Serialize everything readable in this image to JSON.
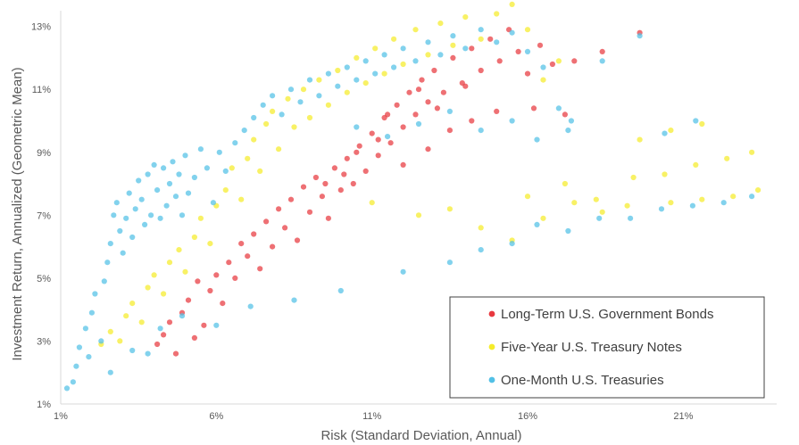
{
  "chart_data": {
    "type": "scatter",
    "title": "",
    "xlabel": "Risk (Standard Deviation, Annual)",
    "ylabel": "Investment Return, Annualized (Geometric Mean)",
    "xlim": [
      1,
      24
    ],
    "ylim": [
      1,
      13.5
    ],
    "x_ticks": [
      "1%",
      "6%",
      "11%",
      "16%",
      "21%"
    ],
    "y_ticks": [
      "1%",
      "3%",
      "5%",
      "7%",
      "9%",
      "11%",
      "13%"
    ],
    "legend_position": "bottom-right",
    "grid": false,
    "series": [
      {
        "name": "Long-Term U.S. Government Bonds",
        "color": "#e8393f",
        "points": [
          [
            4.1,
            2.9
          ],
          [
            4.3,
            3.2
          ],
          [
            4.5,
            3.6
          ],
          [
            4.7,
            2.6
          ],
          [
            4.9,
            3.9
          ],
          [
            5.1,
            4.3
          ],
          [
            5.3,
            3.1
          ],
          [
            5.4,
            4.9
          ],
          [
            5.6,
            3.5
          ],
          [
            5.8,
            4.6
          ],
          [
            6.0,
            5.1
          ],
          [
            6.2,
            4.2
          ],
          [
            6.4,
            5.5
          ],
          [
            6.6,
            5.0
          ],
          [
            6.8,
            6.1
          ],
          [
            7.0,
            5.7
          ],
          [
            7.2,
            6.4
          ],
          [
            7.4,
            5.3
          ],
          [
            7.6,
            6.8
          ],
          [
            7.8,
            6.0
          ],
          [
            8.0,
            7.2
          ],
          [
            8.2,
            6.6
          ],
          [
            8.4,
            7.5
          ],
          [
            8.6,
            6.2
          ],
          [
            8.8,
            7.9
          ],
          [
            9.0,
            7.1
          ],
          [
            9.2,
            8.2
          ],
          [
            9.4,
            7.6
          ],
          [
            9.6,
            6.9
          ],
          [
            9.8,
            8.5
          ],
          [
            10.0,
            7.8
          ],
          [
            10.2,
            8.8
          ],
          [
            10.4,
            8.0
          ],
          [
            10.6,
            9.2
          ],
          [
            10.8,
            8.4
          ],
          [
            11.0,
            9.6
          ],
          [
            11.2,
            8.9
          ],
          [
            11.4,
            10.1
          ],
          [
            11.6,
            9.3
          ],
          [
            11.8,
            10.5
          ],
          [
            12.0,
            9.8
          ],
          [
            12.2,
            10.9
          ],
          [
            12.4,
            10.2
          ],
          [
            12.6,
            11.3
          ],
          [
            12.8,
            10.6
          ],
          [
            13.0,
            11.6
          ],
          [
            13.3,
            10.9
          ],
          [
            13.6,
            12.0
          ],
          [
            13.9,
            11.2
          ],
          [
            14.2,
            12.3
          ],
          [
            14.5,
            11.6
          ],
          [
            14.8,
            12.6
          ],
          [
            15.1,
            11.9
          ],
          [
            15.4,
            12.9
          ],
          [
            15.7,
            12.2
          ],
          [
            16.0,
            11.5
          ],
          [
            16.4,
            12.4
          ],
          [
            16.8,
            11.8
          ],
          [
            17.5,
            11.9
          ],
          [
            18.4,
            12.2
          ],
          [
            19.6,
            12.8
          ],
          [
            10.5,
            9.0
          ],
          [
            11.2,
            9.4
          ],
          [
            12.0,
            8.6
          ],
          [
            12.8,
            9.1
          ],
          [
            13.5,
            9.7
          ],
          [
            14.2,
            10.0
          ],
          [
            15.0,
            10.3
          ],
          [
            9.5,
            8.0
          ],
          [
            10.1,
            8.3
          ],
          [
            11.5,
            10.2
          ],
          [
            12.5,
            11.0
          ],
          [
            13.1,
            10.4
          ],
          [
            14.0,
            11.1
          ],
          [
            16.2,
            10.4
          ],
          [
            17.2,
            10.2
          ]
        ]
      },
      {
        "name": "Five-Year U.S. Treasury Notes",
        "color": "#f5ec2a",
        "points": [
          [
            2.3,
            2.9
          ],
          [
            2.6,
            3.3
          ],
          [
            2.9,
            3.0
          ],
          [
            3.1,
            3.8
          ],
          [
            3.3,
            4.2
          ],
          [
            3.6,
            3.6
          ],
          [
            3.8,
            4.7
          ],
          [
            4.0,
            5.1
          ],
          [
            4.3,
            4.5
          ],
          [
            4.5,
            5.5
          ],
          [
            4.8,
            5.9
          ],
          [
            5.0,
            5.2
          ],
          [
            5.3,
            6.3
          ],
          [
            5.5,
            6.9
          ],
          [
            5.8,
            6.1
          ],
          [
            6.0,
            7.3
          ],
          [
            6.3,
            7.8
          ],
          [
            6.5,
            8.5
          ],
          [
            6.8,
            7.5
          ],
          [
            7.0,
            8.8
          ],
          [
            7.2,
            9.4
          ],
          [
            7.4,
            8.4
          ],
          [
            7.6,
            9.9
          ],
          [
            7.8,
            10.3
          ],
          [
            8.0,
            9.1
          ],
          [
            8.3,
            10.7
          ],
          [
            8.5,
            9.8
          ],
          [
            8.8,
            11.0
          ],
          [
            9.0,
            10.1
          ],
          [
            9.3,
            11.3
          ],
          [
            9.6,
            10.5
          ],
          [
            9.9,
            11.6
          ],
          [
            10.2,
            10.9
          ],
          [
            10.5,
            12.0
          ],
          [
            10.8,
            11.2
          ],
          [
            11.1,
            12.3
          ],
          [
            11.4,
            11.5
          ],
          [
            11.7,
            12.6
          ],
          [
            12.0,
            11.8
          ],
          [
            12.4,
            12.9
          ],
          [
            12.8,
            12.1
          ],
          [
            13.2,
            13.1
          ],
          [
            13.6,
            12.4
          ],
          [
            14.0,
            13.3
          ],
          [
            14.5,
            12.6
          ],
          [
            15.0,
            13.4
          ],
          [
            15.5,
            13.7
          ],
          [
            16.0,
            12.9
          ],
          [
            16.5,
            11.3
          ],
          [
            17.0,
            11.9
          ],
          [
            11.0,
            7.4
          ],
          [
            12.5,
            7.0
          ],
          [
            13.5,
            7.2
          ],
          [
            14.5,
            6.6
          ],
          [
            15.5,
            6.2
          ],
          [
            16.5,
            6.9
          ],
          [
            17.5,
            7.4
          ],
          [
            18.4,
            7.1
          ],
          [
            19.4,
            8.2
          ],
          [
            20.4,
            8.3
          ],
          [
            21.4,
            8.6
          ],
          [
            22.4,
            8.8
          ],
          [
            23.2,
            9.0
          ],
          [
            19.6,
            9.4
          ],
          [
            20.6,
            9.7
          ],
          [
            21.6,
            9.9
          ],
          [
            16.0,
            7.6
          ],
          [
            17.2,
            8.0
          ],
          [
            18.2,
            7.5
          ],
          [
            19.2,
            7.3
          ],
          [
            20.6,
            7.4
          ],
          [
            21.6,
            7.5
          ],
          [
            22.6,
            7.6
          ],
          [
            23.4,
            7.8
          ]
        ]
      },
      {
        "name": "One-Month U.S. Treasuries",
        "color": "#52c0e6",
        "points": [
          [
            1.2,
            1.5
          ],
          [
            1.4,
            1.7
          ],
          [
            1.5,
            2.2
          ],
          [
            1.6,
            2.8
          ],
          [
            1.8,
            3.4
          ],
          [
            1.9,
            2.5
          ],
          [
            2.0,
            3.9
          ],
          [
            2.1,
            4.5
          ],
          [
            2.3,
            3.0
          ],
          [
            2.4,
            4.9
          ],
          [
            2.5,
            5.5
          ],
          [
            2.6,
            6.1
          ],
          [
            2.7,
            7.0
          ],
          [
            2.8,
            7.4
          ],
          [
            2.9,
            6.5
          ],
          [
            3.0,
            5.8
          ],
          [
            3.1,
            6.9
          ],
          [
            3.2,
            7.7
          ],
          [
            3.3,
            6.3
          ],
          [
            3.4,
            7.2
          ],
          [
            3.5,
            8.1
          ],
          [
            3.6,
            7.5
          ],
          [
            3.7,
            6.7
          ],
          [
            3.8,
            8.3
          ],
          [
            3.9,
            7.0
          ],
          [
            4.0,
            8.6
          ],
          [
            4.1,
            7.8
          ],
          [
            4.2,
            6.9
          ],
          [
            4.3,
            8.5
          ],
          [
            4.4,
            7.3
          ],
          [
            4.5,
            8.0
          ],
          [
            4.6,
            8.7
          ],
          [
            4.7,
            7.6
          ],
          [
            4.8,
            8.3
          ],
          [
            4.9,
            7.0
          ],
          [
            5.0,
            8.9
          ],
          [
            5.1,
            7.7
          ],
          [
            5.3,
            8.2
          ],
          [
            5.5,
            9.1
          ],
          [
            5.7,
            8.5
          ],
          [
            5.9,
            7.4
          ],
          [
            6.1,
            9.0
          ],
          [
            6.3,
            8.4
          ],
          [
            6.6,
            9.3
          ],
          [
            6.9,
            9.7
          ],
          [
            7.2,
            10.1
          ],
          [
            7.5,
            10.5
          ],
          [
            7.8,
            10.8
          ],
          [
            8.1,
            10.2
          ],
          [
            8.4,
            11.0
          ],
          [
            8.7,
            10.6
          ],
          [
            9.0,
            11.3
          ],
          [
            9.3,
            10.8
          ],
          [
            9.6,
            11.5
          ],
          [
            9.9,
            11.1
          ],
          [
            10.2,
            11.7
          ],
          [
            10.5,
            11.3
          ],
          [
            10.8,
            11.9
          ],
          [
            11.1,
            11.5
          ],
          [
            11.4,
            12.1
          ],
          [
            11.7,
            11.7
          ],
          [
            12.0,
            12.3
          ],
          [
            12.4,
            11.9
          ],
          [
            12.8,
            12.5
          ],
          [
            13.2,
            12.1
          ],
          [
            13.6,
            12.7
          ],
          [
            14.0,
            12.3
          ],
          [
            14.5,
            12.9
          ],
          [
            15.0,
            12.5
          ],
          [
            15.5,
            12.8
          ],
          [
            16.0,
            12.2
          ],
          [
            16.5,
            11.7
          ],
          [
            17.0,
            10.4
          ],
          [
            17.4,
            10.0
          ],
          [
            18.4,
            11.9
          ],
          [
            19.6,
            12.7
          ],
          [
            20.4,
            9.6
          ],
          [
            21.4,
            10.0
          ],
          [
            3.8,
            2.6
          ],
          [
            2.6,
            2.0
          ],
          [
            3.3,
            2.7
          ],
          [
            4.2,
            3.4
          ],
          [
            4.9,
            3.8
          ],
          [
            6.0,
            3.5
          ],
          [
            7.1,
            4.1
          ],
          [
            8.5,
            4.3
          ],
          [
            10.0,
            4.6
          ],
          [
            12.0,
            5.2
          ],
          [
            13.5,
            5.5
          ],
          [
            14.5,
            5.9
          ],
          [
            15.5,
            6.1
          ],
          [
            16.3,
            6.7
          ],
          [
            17.3,
            6.5
          ],
          [
            18.3,
            6.9
          ],
          [
            19.3,
            6.9
          ],
          [
            20.3,
            7.2
          ],
          [
            21.3,
            7.3
          ],
          [
            22.3,
            7.4
          ],
          [
            23.2,
            7.6
          ],
          [
            10.5,
            9.8
          ],
          [
            11.5,
            9.5
          ],
          [
            12.5,
            9.9
          ],
          [
            13.5,
            10.3
          ],
          [
            14.5,
            9.7
          ],
          [
            15.5,
            10.0
          ],
          [
            16.3,
            9.4
          ],
          [
            17.3,
            9.7
          ]
        ]
      }
    ]
  }
}
